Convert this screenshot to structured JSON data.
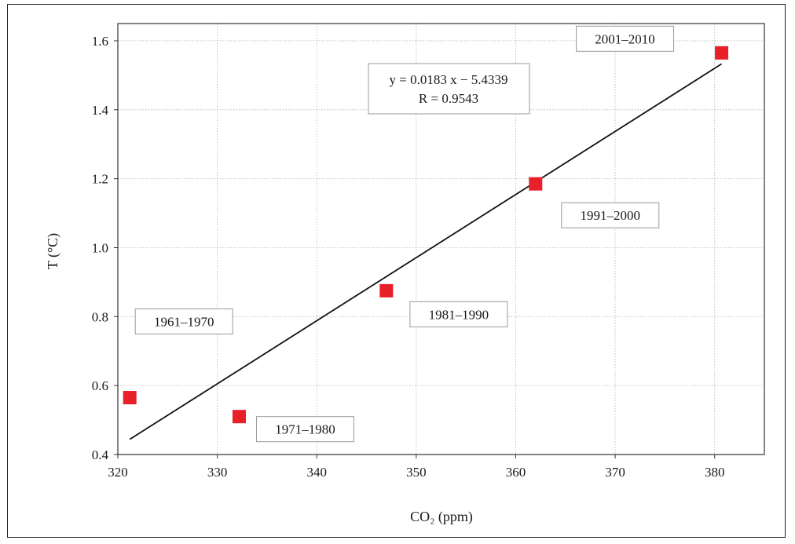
{
  "chart_data": {
    "type": "scatter",
    "xlabel": "CO₂ (ppm)",
    "ylabel": "T (°C)",
    "xlim": [
      320,
      385
    ],
    "ylim": [
      0.4,
      1.65
    ],
    "x_ticks": [
      320,
      330,
      340,
      350,
      360,
      370,
      380
    ],
    "y_ticks": [
      0.4,
      0.6,
      0.8,
      1.0,
      1.2,
      1.4,
      1.6
    ],
    "y_tick_labels": [
      "0.4",
      "0.6",
      "0.8",
      "1.0",
      "1.2",
      "1.4",
      "1.6"
    ],
    "grid": true,
    "marker_color": "#e8202a",
    "points": [
      {
        "x": 321.2,
        "y": 0.565,
        "label": "1961–1970"
      },
      {
        "x": 332.2,
        "y": 0.51,
        "label": "1971–1980"
      },
      {
        "x": 347.0,
        "y": 0.875,
        "label": "1981–1990"
      },
      {
        "x": 362.0,
        "y": 1.185,
        "label": "1991–2000"
      },
      {
        "x": 380.7,
        "y": 1.565,
        "label": "2001–2010"
      }
    ],
    "trendline": {
      "slope": 0.0183,
      "intercept": -5.4339,
      "x_range": [
        321.2,
        380.7
      ],
      "equation": "y = 0.0183 x − 5.4339",
      "r_text": "R = 0.9543"
    }
  }
}
